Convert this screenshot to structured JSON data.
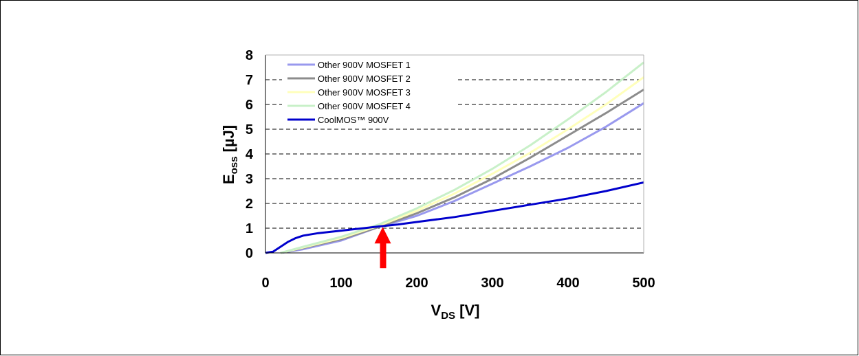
{
  "chart_data": {
    "type": "line",
    "title": "",
    "xlabel": {
      "main": "V",
      "sub": "DS",
      "unit": " [V]"
    },
    "ylabel": {
      "main": "E",
      "sub": "oss",
      "unit": " [µJ]"
    },
    "xlim": [
      0,
      500
    ],
    "ylim": [
      0,
      8
    ],
    "xticks": [
      "0",
      "100",
      "200",
      "300",
      "400",
      "500"
    ],
    "yticks": [
      "0",
      "1",
      "2",
      "3",
      "4",
      "5",
      "6",
      "7",
      "8"
    ],
    "grid": "horizontal dashed",
    "legend_position": "top-left",
    "series": [
      {
        "name": "Other 900V MOSFET 1",
        "color": "#9999ee",
        "points": [
          [
            20,
            0
          ],
          [
            50,
            0.15
          ],
          [
            100,
            0.5
          ],
          [
            150,
            1.05
          ],
          [
            200,
            1.5
          ],
          [
            250,
            2.1
          ],
          [
            300,
            2.8
          ],
          [
            350,
            3.5
          ],
          [
            400,
            4.25
          ],
          [
            450,
            5.1
          ],
          [
            500,
            6.05
          ]
        ]
      },
      {
        "name": "Other 900V MOSFET 2",
        "color": "#8c8c8c",
        "points": [
          [
            20,
            0
          ],
          [
            50,
            0.2
          ],
          [
            100,
            0.55
          ],
          [
            150,
            1.05
          ],
          [
            200,
            1.6
          ],
          [
            250,
            2.25
          ],
          [
            300,
            3.0
          ],
          [
            350,
            3.85
          ],
          [
            400,
            4.75
          ],
          [
            450,
            5.65
          ],
          [
            500,
            6.6
          ]
        ]
      },
      {
        "name": "Other 900V MOSFET 3",
        "color": "#ffffbb",
        "points": [
          [
            20,
            0
          ],
          [
            50,
            0.22
          ],
          [
            100,
            0.6
          ],
          [
            150,
            1.1
          ],
          [
            200,
            1.7
          ],
          [
            250,
            2.4
          ],
          [
            300,
            3.2
          ],
          [
            350,
            4.05
          ],
          [
            400,
            5.0
          ],
          [
            450,
            6.0
          ],
          [
            500,
            7.1
          ]
        ]
      },
      {
        "name": "Other 900V MOSFET 4",
        "color": "#c8f0c8",
        "points": [
          [
            20,
            0
          ],
          [
            50,
            0.25
          ],
          [
            100,
            0.65
          ],
          [
            150,
            1.15
          ],
          [
            200,
            1.8
          ],
          [
            250,
            2.55
          ],
          [
            300,
            3.4
          ],
          [
            350,
            4.35
          ],
          [
            400,
            5.4
          ],
          [
            450,
            6.5
          ],
          [
            500,
            7.7
          ]
        ]
      },
      {
        "name": "CoolMOS™ 900V",
        "color": "#0000cc",
        "points": [
          [
            0,
            0
          ],
          [
            10,
            0.05
          ],
          [
            20,
            0.25
          ],
          [
            30,
            0.45
          ],
          [
            40,
            0.6
          ],
          [
            50,
            0.7
          ],
          [
            70,
            0.8
          ],
          [
            100,
            0.9
          ],
          [
            130,
            1.0
          ],
          [
            150,
            1.07
          ],
          [
            175,
            1.15
          ],
          [
            200,
            1.25
          ],
          [
            250,
            1.45
          ],
          [
            300,
            1.7
          ],
          [
            350,
            1.95
          ],
          [
            400,
            2.2
          ],
          [
            450,
            2.5
          ],
          [
            500,
            2.85
          ]
        ]
      }
    ],
    "annotation": {
      "type": "arrow",
      "color": "#ff0000",
      "x": 155,
      "y": 1.05
    }
  }
}
